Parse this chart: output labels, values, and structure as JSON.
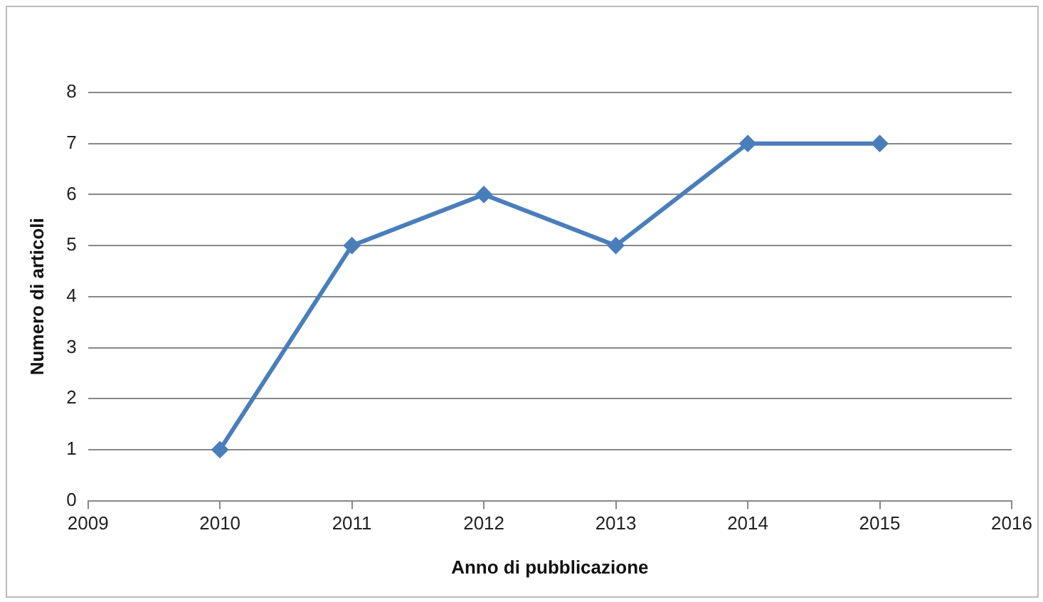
{
  "chart_data": {
    "type": "line",
    "xlabel": "Anno di pubblicazione",
    "ylabel": "Numero di articoli",
    "x": [
      2010,
      2011,
      2012,
      2013,
      2014,
      2015
    ],
    "series": [
      {
        "color": "#4a7ebb",
        "values": [
          1,
          5,
          6,
          5,
          7,
          7
        ]
      }
    ],
    "xlim": [
      2009,
      2016
    ],
    "xticks": [
      2009,
      2010,
      2011,
      2012,
      2013,
      2014,
      2015,
      2016
    ],
    "ylim": [
      0,
      8
    ],
    "yticks": [
      0,
      1,
      2,
      3,
      4,
      5,
      6,
      7,
      8
    ],
    "grid": "y",
    "legend": false,
    "marker": "diamond",
    "line_style": "solid"
  }
}
